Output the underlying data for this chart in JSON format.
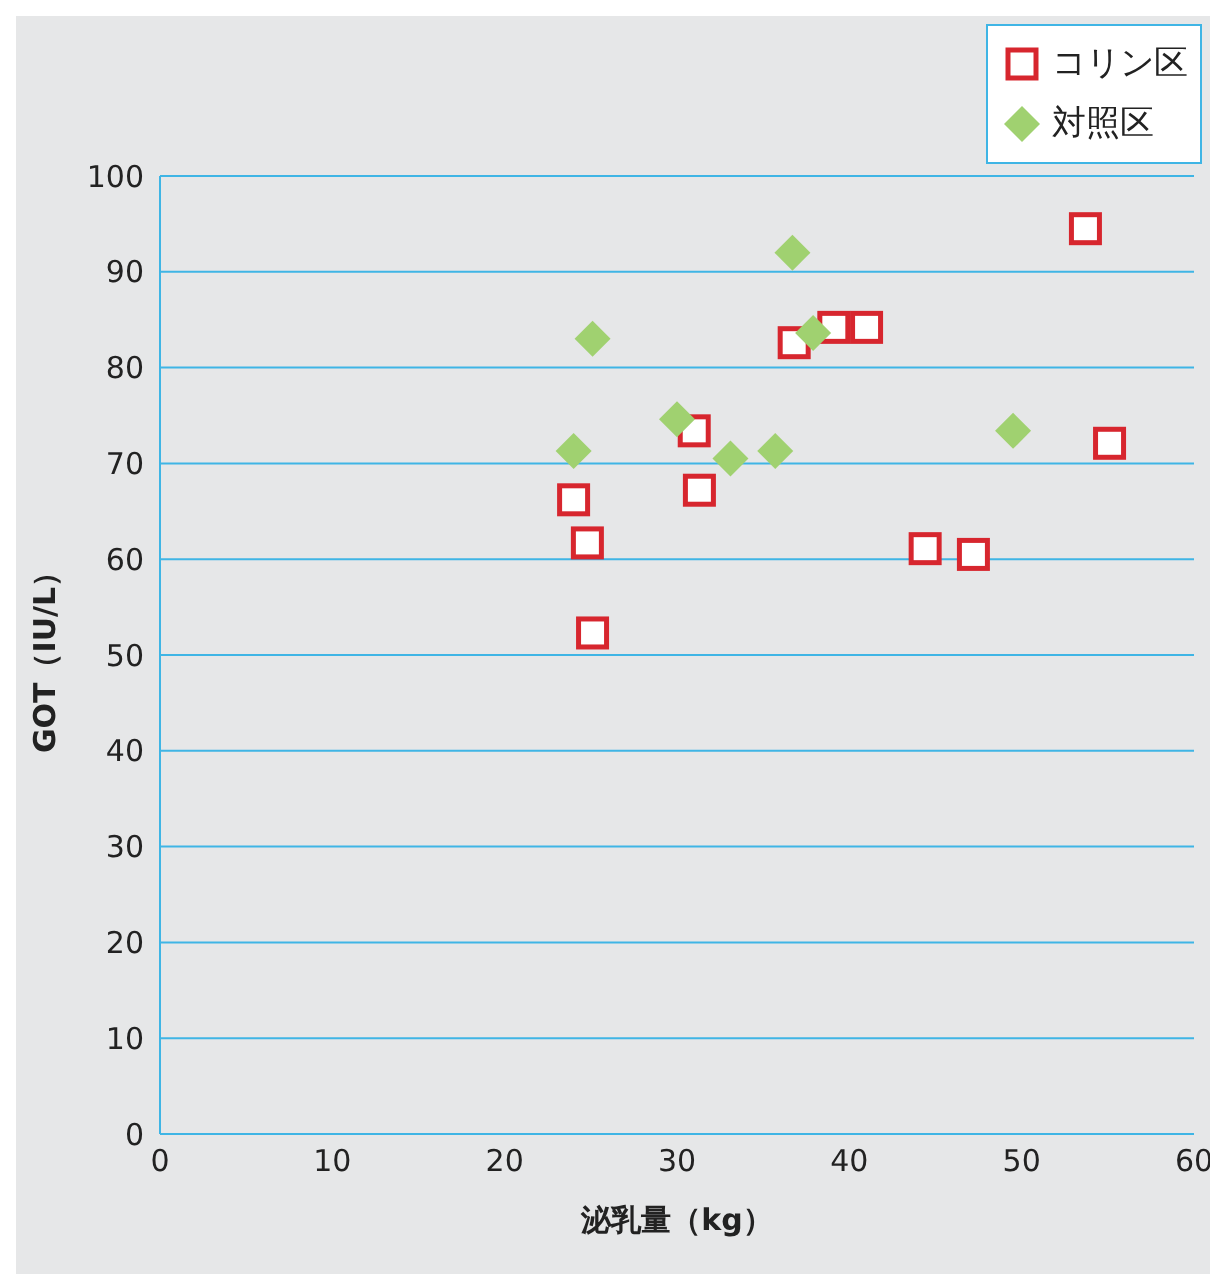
{
  "chart_data": {
    "type": "scatter",
    "xlabel": "泌乳量（kg）",
    "ylabel": "GOT（IU/L）",
    "xlim": [
      0,
      60
    ],
    "xticks": [
      0,
      10,
      20,
      30,
      40,
      50,
      60
    ],
    "ylim": [
      0,
      100
    ],
    "yticks": [
      0,
      10,
      20,
      30,
      40,
      50,
      60,
      70,
      80,
      90,
      100
    ],
    "grid": "y",
    "legend": "top right",
    "series": [
      {
        "name": "コリン区",
        "color": "#d7262e",
        "marker": "square",
        "x": [
          24.0,
          24.8,
          25.1,
          31.0,
          31.3,
          36.8,
          39.1,
          41.0,
          44.4,
          47.2,
          53.7,
          55.1
        ],
        "values": [
          66.2,
          61.7,
          52.3,
          73.4,
          67.2,
          82.6,
          84.2,
          84.2,
          61.1,
          60.5,
          94.5,
          72.1
        ]
      },
      {
        "name": "対照区",
        "color": "#a0d170",
        "marker": "diamond",
        "x": [
          24.0,
          25.1,
          30.0,
          33.1,
          35.7,
          36.7,
          37.9,
          49.5
        ],
        "values": [
          71.3,
          83.0,
          74.6,
          70.5,
          71.3,
          92.0,
          83.6,
          73.4
        ]
      }
    ]
  }
}
